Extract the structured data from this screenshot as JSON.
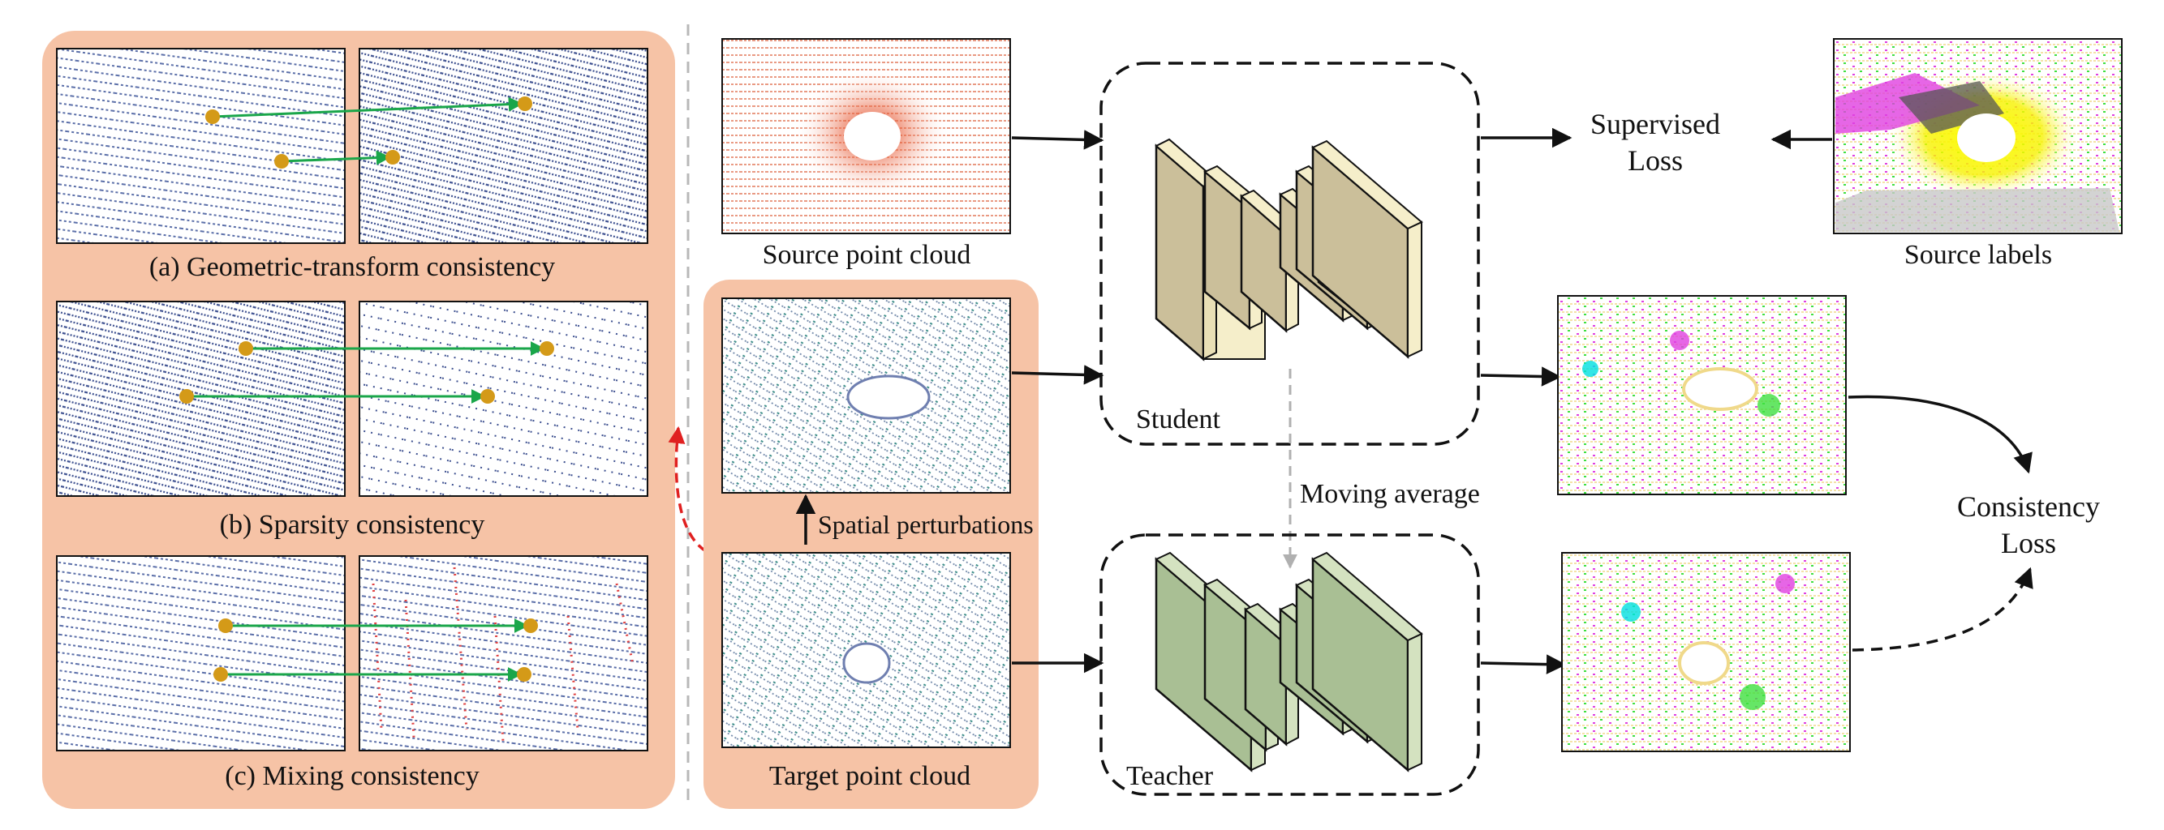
{
  "left_panel": {
    "captions": {
      "geometric": "(a) Geometric-transform consistency",
      "sparsity": "(b) Sparsity consistency",
      "mixing": "(c) Mixing consistency"
    }
  },
  "middle": {
    "source_label": "Source point cloud",
    "target_label": "Target point cloud",
    "spatial_label": "Spatial perturbations"
  },
  "networks": {
    "student_label": "Student",
    "teacher_label": "Teacher",
    "moving_average_label": "Moving average"
  },
  "right": {
    "supervised_loss": [
      "Supervised",
      "Loss"
    ],
    "source_labels": "Source labels",
    "consistency_loss": [
      "Consistency",
      "Loss"
    ]
  },
  "colors": {
    "panel_fill": "#f6c3a6",
    "student_face": "#cbbf9a",
    "student_top": "#f5eeca",
    "teacher_face": "#a9bf94",
    "teacher_top": "#d4e2c0",
    "match_arrow": "#1aa64a",
    "keypoint": "#d49a18",
    "link_arrow": "#e02020"
  }
}
